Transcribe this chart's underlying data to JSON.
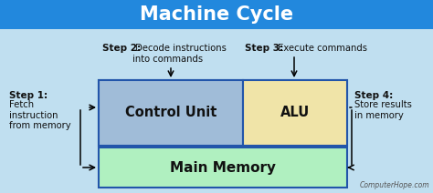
{
  "title": "Machine Cycle",
  "title_bg": "#2288dd",
  "title_color": "#ffffff",
  "bg_color": "#c0dff0",
  "control_unit_color": "#a0bcd8",
  "control_unit_border": "#2255aa",
  "alu_color": "#f0e4a8",
  "alu_border": "#2255aa",
  "main_memory_color": "#b0f0c0",
  "main_memory_border": "#2255aa",
  "outer_box_border": "#2255aa",
  "text_color": "#111111",
  "watermark": "ComputerHope.com",
  "step1_bold": "Step 1:",
  "step1_normal": "Fetch\ninstruction\nfrom memory",
  "step2_bold": "Step 2:",
  "step2_normal": " Decode instructions\ninto commands",
  "step3_bold": "Step 3:",
  "step3_normal": " Execute commands",
  "step4_bold": "Step 4:",
  "step4_normal": "Store results\nin memory",
  "label_cu": "Control Unit",
  "label_alu": "ALU",
  "label_mm": "Main Memory",
  "figw": 4.74,
  "figh": 2.12,
  "dpi": 100
}
